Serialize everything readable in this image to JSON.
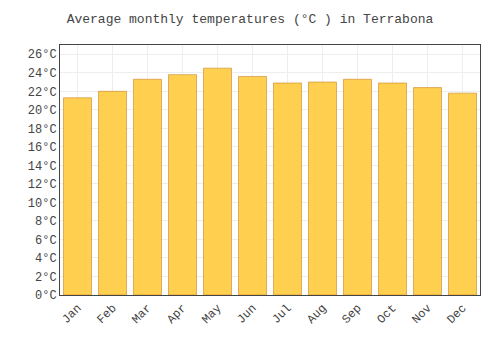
{
  "chart_data": {
    "type": "bar",
    "title": "Average monthly temperatures (°C ) in Terrabona",
    "categories": [
      "Jan",
      "Feb",
      "Mar",
      "Apr",
      "May",
      "Jun",
      "Jul",
      "Aug",
      "Sep",
      "Oct",
      "Nov",
      "Dec"
    ],
    "values": [
      21.3,
      22.0,
      23.3,
      23.8,
      24.5,
      23.6,
      22.9,
      23.0,
      23.3,
      22.9,
      22.4,
      21.8
    ],
    "color": "#FFD050",
    "ylim": [
      0,
      27
    ],
    "yticks": [
      {
        "value": 0,
        "label": "0°C"
      },
      {
        "value": 2,
        "label": "2°C"
      },
      {
        "value": 4,
        "label": "4°C"
      },
      {
        "value": 6,
        "label": "6°C"
      },
      {
        "value": 8,
        "label": "8°C"
      },
      {
        "value": 10,
        "label": "10°C"
      },
      {
        "value": 12,
        "label": "12°C"
      },
      {
        "value": 14,
        "label": "14°C"
      },
      {
        "value": 16,
        "label": "16°C"
      },
      {
        "value": 18,
        "label": "18°C"
      },
      {
        "value": 20,
        "label": "20°C"
      },
      {
        "value": 22,
        "label": "22°C"
      },
      {
        "value": 24,
        "label": "24°C"
      },
      {
        "value": 26,
        "label": "26°C"
      }
    ],
    "grid": true
  }
}
